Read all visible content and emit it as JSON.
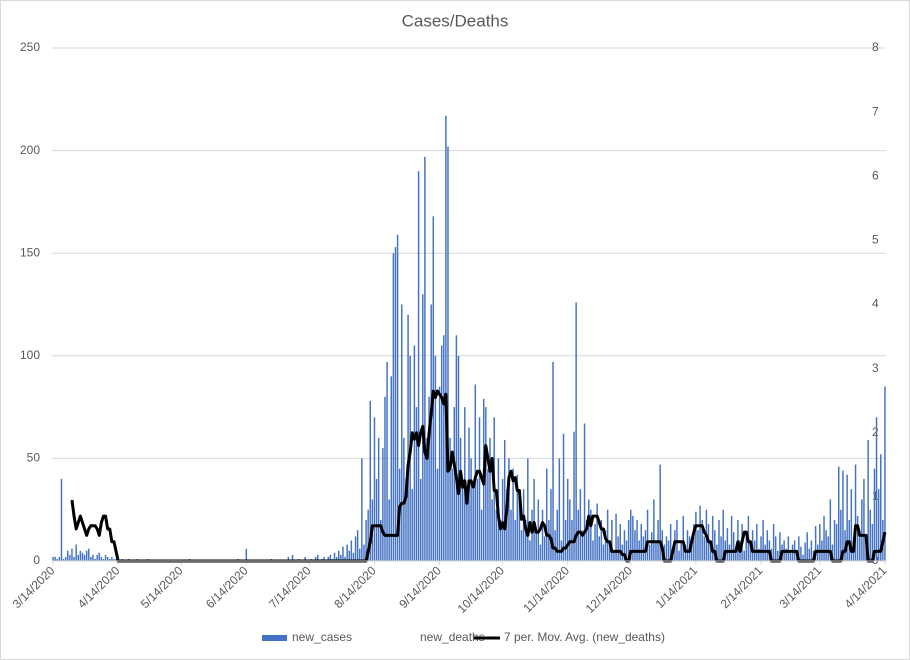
{
  "chart_data": {
    "type": "bar",
    "title": "Cases/Deaths",
    "ylim": [
      0,
      250
    ],
    "yticks": [
      0,
      50,
      100,
      150,
      200,
      250
    ],
    "y2lim": [
      0,
      8
    ],
    "y2ticks": [
      0,
      1,
      2,
      3,
      4,
      5,
      6,
      7,
      8
    ],
    "grid": true,
    "legend": "bottom",
    "categories": [
      "3/14/2020",
      null,
      null,
      null,
      null,
      null,
      null,
      null,
      null,
      null,
      null,
      null,
      null,
      null,
      null,
      null,
      null,
      null,
      null,
      null,
      null,
      null,
      null,
      null,
      null,
      null,
      null,
      null,
      null,
      null,
      null,
      "4/14/2020",
      null,
      null,
      null,
      null,
      null,
      null,
      null,
      null,
      null,
      null,
      null,
      null,
      null,
      null,
      null,
      null,
      null,
      null,
      null,
      null,
      null,
      null,
      null,
      null,
      null,
      null,
      null,
      null,
      null,
      "5/14/2020",
      null,
      null,
      null,
      null,
      null,
      null,
      null,
      null,
      null,
      null,
      null,
      null,
      null,
      null,
      null,
      null,
      null,
      null,
      null,
      null,
      null,
      null,
      null,
      null,
      null,
      null,
      null,
      null,
      null,
      null,
      "6/14/2020",
      null,
      null,
      null,
      null,
      null,
      null,
      null,
      null,
      null,
      null,
      null,
      null,
      null,
      null,
      null,
      null,
      null,
      null,
      null,
      null,
      null,
      null,
      null,
      null,
      null,
      null,
      null,
      null,
      null,
      "7/14/2020",
      null,
      null,
      null,
      null,
      null,
      null,
      null,
      null,
      null,
      null,
      null,
      null,
      null,
      null,
      null,
      null,
      null,
      null,
      null,
      null,
      null,
      null,
      null,
      null,
      null,
      null,
      null,
      null,
      null,
      null,
      "8/14/2020",
      null,
      null,
      null,
      null,
      null,
      null,
      null,
      null,
      null,
      null,
      null,
      null,
      null,
      null,
      null,
      null,
      null,
      null,
      null,
      null,
      null,
      null,
      null,
      null,
      null,
      null,
      null,
      null,
      null,
      null,
      "9/14/2020",
      null,
      null,
      null,
      null,
      null,
      null,
      null,
      null,
      null,
      null,
      null,
      null,
      null,
      null,
      null,
      null,
      null,
      null,
      null,
      null,
      null,
      null,
      null,
      null,
      null,
      null,
      null,
      null,
      null,
      "10/14/2020",
      null,
      null,
      null,
      null,
      null,
      null,
      null,
      null,
      null,
      null,
      null,
      null,
      null,
      null,
      null,
      null,
      null,
      null,
      null,
      null,
      null,
      null,
      null,
      null,
      null,
      null,
      null,
      null,
      null,
      null,
      "11/14/2020",
      null,
      null,
      null,
      null,
      null,
      null,
      null,
      null,
      null,
      null,
      null,
      null,
      null,
      null,
      null,
      null,
      null,
      null,
      null,
      null,
      null,
      null,
      null,
      null,
      null,
      null,
      null,
      null,
      null,
      "12/14/2020",
      null,
      null,
      null,
      null,
      null,
      null,
      null,
      null,
      null,
      null,
      null,
      null,
      null,
      null,
      null,
      null,
      null,
      null,
      null,
      null,
      null,
      null,
      null,
      null,
      null,
      null,
      null,
      null,
      null,
      null,
      "1/14/2021",
      null,
      null,
      null,
      null,
      null,
      null,
      null,
      null,
      null,
      null,
      null,
      null,
      null,
      null,
      null,
      null,
      null,
      null,
      null,
      null,
      null,
      null,
      null,
      null,
      null,
      null,
      null,
      null,
      null,
      null,
      "2/14/2021",
      null,
      null,
      null,
      null,
      null,
      null,
      null,
      null,
      null,
      null,
      null,
      null,
      null,
      null,
      null,
      null,
      null,
      null,
      null,
      null,
      null,
      null,
      null,
      null,
      null,
      null,
      null,
      "3/14/2021",
      null,
      null,
      null,
      null,
      null,
      null,
      null,
      null,
      null,
      null,
      null,
      null,
      null,
      null,
      null,
      null,
      null,
      null,
      null,
      null,
      null,
      null,
      null,
      null,
      null,
      null,
      null,
      null,
      null,
      null,
      "4/14/2021"
    ],
    "series": [
      {
        "name": "new_cases",
        "color": "#4472c4",
        "type": "bar",
        "values": [
          2,
          2,
          1,
          2,
          40,
          1,
          2,
          5,
          3,
          6,
          2,
          8,
          3,
          5,
          4,
          3,
          5,
          6,
          2,
          3,
          1,
          3,
          4,
          2,
          1,
          3,
          2,
          1,
          2,
          1,
          1,
          1,
          0,
          1,
          0,
          0,
          1,
          0,
          0,
          0,
          1,
          0,
          0,
          0,
          0,
          1,
          0,
          0,
          0,
          0,
          0,
          0,
          0,
          0,
          0,
          0,
          0,
          0,
          0,
          0,
          0,
          0,
          0,
          0,
          0,
          1,
          0,
          0,
          0,
          0,
          0,
          0,
          0,
          0,
          0,
          0,
          0,
          0,
          0,
          0,
          0,
          0,
          0,
          0,
          0,
          0,
          0,
          0,
          1,
          0,
          0,
          0,
          6,
          0,
          0,
          0,
          0,
          0,
          0,
          0,
          0,
          0,
          0,
          0,
          1,
          0,
          0,
          0,
          0,
          0,
          0,
          0,
          2,
          0,
          3,
          0,
          0,
          1,
          0,
          0,
          2,
          0,
          0,
          1,
          0,
          2,
          3,
          0,
          1,
          2,
          0,
          2,
          3,
          1,
          4,
          2,
          5,
          3,
          7,
          2,
          8,
          5,
          10,
          4,
          12,
          15,
          6,
          50,
          8,
          20,
          25,
          78,
          30,
          70,
          40,
          60,
          20,
          55,
          80,
          97,
          30,
          90,
          150,
          153,
          159,
          45,
          125,
          60,
          40,
          120,
          100,
          35,
          105,
          75,
          190,
          40,
          130,
          197,
          60,
          80,
          125,
          168,
          100,
          45,
          85,
          105,
          110,
          217,
          202,
          60,
          45,
          75,
          110,
          100,
          60,
          40,
          75,
          30,
          65,
          50,
          35,
          86,
          40,
          70,
          25,
          79,
          75,
          45,
          60,
          30,
          70,
          25,
          50,
          20,
          40,
          59,
          35,
          50,
          25,
          45,
          20,
          42,
          30,
          15,
          35,
          20,
          50,
          10,
          25,
          40,
          15,
          30,
          8,
          25,
          12,
          45,
          20,
          35,
          97,
          15,
          25,
          50,
          10,
          62,
          20,
          40,
          30,
          20,
          63,
          126,
          25,
          35,
          15,
          67,
          20,
          30,
          25,
          10,
          18,
          28,
          12,
          20,
          8,
          15,
          25,
          10,
          20,
          5,
          23,
          12,
          18,
          8,
          15,
          10,
          20,
          25,
          22,
          15,
          20,
          10,
          18,
          12,
          15,
          25,
          8,
          14,
          30,
          10,
          20,
          47,
          15,
          8,
          12,
          10,
          18,
          6,
          15,
          20,
          5,
          10,
          22,
          8,
          15,
          12,
          10,
          18,
          24,
          15,
          27,
          20,
          12,
          25,
          18,
          10,
          22,
          15,
          8,
          20,
          12,
          25,
          10,
          16,
          8,
          22,
          14,
          6,
          20,
          10,
          18,
          5,
          12,
          22,
          8,
          15,
          10,
          18,
          6,
          12,
          20,
          8,
          15,
          10,
          6,
          18,
          12,
          5,
          14,
          8,
          10,
          6,
          12,
          4,
          8,
          10,
          5,
          12,
          7,
          3,
          9,
          14,
          6,
          10,
          5,
          17,
          8,
          18,
          10,
          22,
          15,
          12,
          30,
          8,
          20,
          18,
          46,
          25,
          44,
          15,
          42,
          20,
          35,
          10,
          47,
          22,
          15,
          30,
          40,
          12,
          59,
          25,
          18,
          45,
          70,
          35,
          52,
          20,
          85
        ]
      },
      {
        "name": "new_deaths"
      },
      {
        "name": "7 per. Mov. Avg. (new_deaths)",
        "color": "#000000",
        "type": "line",
        "axis": "y2",
        "values": [
          null,
          null,
          null,
          null,
          null,
          null,
          null,
          null,
          null,
          0.95,
          0.7,
          0.5,
          0.6,
          0.7,
          0.6,
          0.5,
          0.4,
          0.5,
          0.55,
          0.55,
          0.55,
          0.5,
          0.4,
          0.6,
          0.7,
          0.7,
          0.5,
          0.5,
          0.3,
          0.3,
          0.15,
          0,
          0,
          0,
          0,
          0,
          0,
          0,
          0,
          0,
          0,
          0,
          0,
          0,
          0,
          0,
          0,
          0,
          0,
          0,
          0,
          0,
          0,
          0,
          0,
          0,
          0,
          0,
          0,
          0,
          0,
          0,
          0,
          0,
          0,
          0,
          0,
          0,
          0,
          0,
          0,
          0,
          0,
          0,
          0,
          0,
          0,
          0,
          0,
          0,
          0,
          0,
          0,
          0,
          0,
          0,
          0,
          0,
          0,
          0,
          0,
          0,
          0,
          0,
          0,
          0,
          0,
          0,
          0,
          0,
          0,
          0,
          0,
          0,
          0,
          0,
          0,
          0,
          0,
          0,
          0,
          0,
          0,
          0,
          0,
          0,
          0,
          0,
          0,
          0,
          0,
          0,
          0,
          0,
          0,
          0,
          0,
          0,
          0,
          0,
          0,
          0,
          0,
          0,
          0,
          0,
          0,
          0,
          0,
          0,
          0,
          0,
          0,
          0,
          0,
          0,
          0,
          0,
          0,
          0,
          0.15,
          0.3,
          0.55,
          0.55,
          0.55,
          0.55,
          0.55,
          0.45,
          0.4,
          0.4,
          0.4,
          0.4,
          0.4,
          0.4,
          0.4,
          0.85,
          0.9,
          0.9,
          1.0,
          1.5,
          1.7,
          2.0,
          1.9,
          2.0,
          1.8,
          2.0,
          2.1,
          1.7,
          1.6,
          2.0,
          2.3,
          2.65,
          2.55,
          2.65,
          2.6,
          2.55,
          2.45,
          2.6,
          1.4,
          1.45,
          1.7,
          1.5,
          1.3,
          1.05,
          1.4,
          1.15,
          1.25,
          0.9,
          1.25,
          1.25,
          1.15,
          1.3,
          1.4,
          1.4,
          1.3,
          1.2,
          1.8,
          1.6,
          1.4,
          1.6,
          1.1,
          1.1,
          0.7,
          0.5,
          0.6,
          0.5,
          0.8,
          1.3,
          1.4,
          1.25,
          1.3,
          1.1,
          1.1,
          0.65,
          0.7,
          0.5,
          0.4,
          0.6,
          0.45,
          0.6,
          0.45,
          0.45,
          0.5,
          0.6,
          0.55,
          0.4,
          0.4,
          0.35,
          0.2,
          0.2,
          0.15,
          0.15,
          0.15,
          0.2,
          0.2,
          0.25,
          0.3,
          0.3,
          0.3,
          0.4,
          0.45,
          0.45,
          0.4,
          0.45,
          0.5,
          0.7,
          0.55,
          0.7,
          0.7,
          0.7,
          0.6,
          0.5,
          0.5,
          0.35,
          0.3,
          0.3,
          0.15,
          0.15,
          0.15,
          0.15,
          0.15,
          0.1,
          0.1,
          0,
          0,
          0.15,
          0.15,
          0.15,
          0.15,
          0.15,
          0.15,
          0.15,
          0.15,
          0.3,
          0.3,
          0.3,
          0.3,
          0.3,
          0.3,
          0.3,
          0.2,
          0,
          0,
          0,
          0,
          0.15,
          0.3,
          0.3,
          0.3,
          0.3,
          0.3,
          0.15,
          0.15,
          0.15,
          0.3,
          0.45,
          0.55,
          0.55,
          0.55,
          0.55,
          0.45,
          0.4,
          0.3,
          0.3,
          0.15,
          0.15,
          0,
          0,
          0,
          0,
          0.15,
          0.15,
          0.15,
          0.15,
          0.15,
          0.15,
          0.3,
          0.15,
          0.3,
          0.45,
          0.45,
          0.3,
          0.3,
          0.15,
          0.15,
          0.15,
          0.15,
          0.15,
          0.15,
          0.15,
          0.15,
          0.15,
          0,
          0,
          0,
          0,
          0,
          0.15,
          0.15,
          0.15,
          0.15,
          0.15,
          0.15,
          0.15,
          0.15,
          0,
          0,
          0,
          0,
          0,
          0,
          0,
          0,
          0.15,
          0.15,
          0.15,
          0.15,
          0.15,
          0.15,
          0.15,
          0.15,
          0,
          0,
          0,
          0,
          0,
          0.15,
          0.15,
          0.3,
          0.3,
          0.15,
          0.15,
          0.55,
          0.55,
          0.4,
          0.4,
          0.4,
          0.4,
          0,
          0,
          0,
          0.15,
          0.15,
          0.15,
          0.15,
          0.3,
          0.45
        ]
      }
    ]
  }
}
